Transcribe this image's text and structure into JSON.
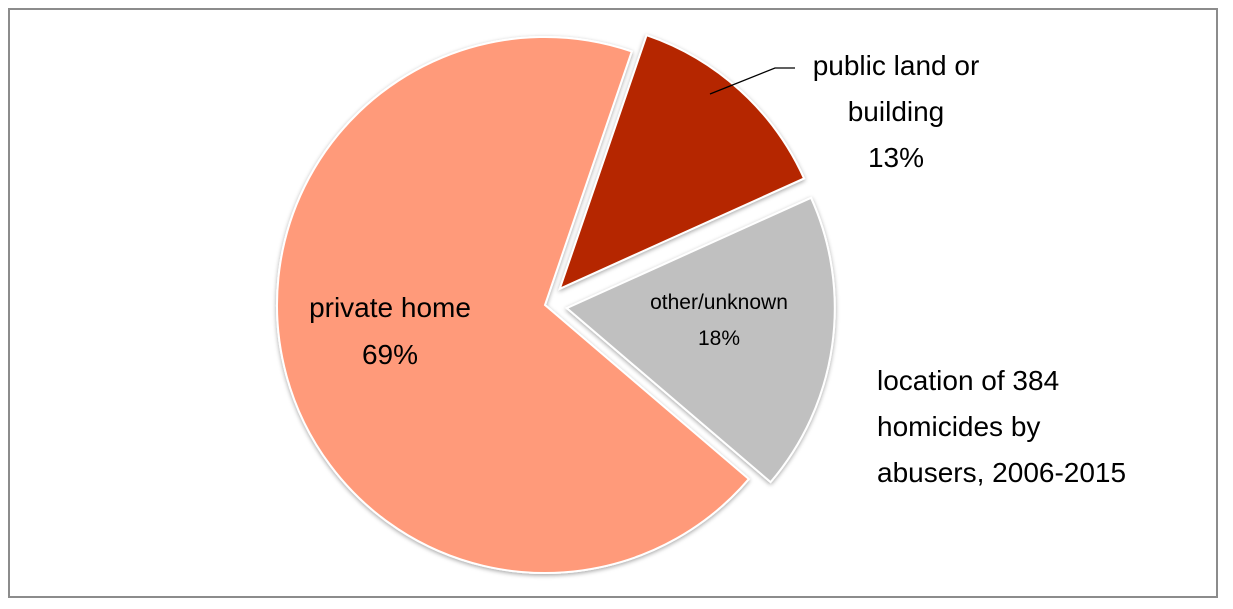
{
  "chart_data": {
    "type": "pie",
    "title": "",
    "slices": [
      {
        "name": "private home",
        "value": 69,
        "label": "69%",
        "color": "#ff9a7a",
        "exploded": false
      },
      {
        "name": "public land or building",
        "value": 13,
        "label": "13%",
        "color": "#b52800",
        "exploded": true
      },
      {
        "name": "other/unknown",
        "value": 18,
        "label": "18%",
        "color": "#c0c0c0",
        "exploded": true
      }
    ],
    "note_lines": [
      "location of  384",
      "homicides by",
      "abusers, 2006-2015"
    ],
    "border_color": "#8c8c8c",
    "slice_edge_color": "#ffffff"
  },
  "labels": {
    "private_home_name": "private home",
    "private_home_pct": "69%",
    "public_name_line1": "public land or",
    "public_name_line2": "building",
    "public_pct": "13%",
    "other_name": "other/unknown",
    "other_pct": "18%"
  }
}
